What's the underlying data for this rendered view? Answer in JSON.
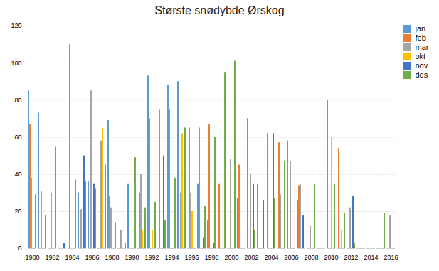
{
  "chart_data": {
    "type": "bar",
    "title": "Største snødybde Ørskog",
    "categories": [
      "1980",
      null,
      "1982",
      null,
      "1984",
      null,
      "1986",
      null,
      "1988",
      null,
      "1990",
      null,
      "1992",
      null,
      "1994",
      null,
      "1996",
      null,
      "1998",
      null,
      "2000",
      null,
      "2002",
      null,
      "2004",
      null,
      "2006",
      null,
      "2008",
      null,
      "2010",
      null,
      "2012",
      null,
      "2014",
      null,
      "2016"
    ],
    "series": [
      {
        "name": "jan",
        "color": "#5b9bd5",
        "values": [
          85,
          73,
          0,
          0,
          0,
          30,
          36,
          0,
          69,
          0,
          35,
          0,
          93,
          0,
          88,
          90,
          0,
          35,
          15,
          0,
          0,
          27,
          70,
          35,
          62,
          0,
          58,
          26,
          0,
          0,
          80,
          0,
          0,
          0,
          0,
          0,
          0
        ]
      },
      {
        "name": "feb",
        "color": "#ed7d31",
        "values": [
          67,
          0,
          0,
          0,
          110,
          0,
          0,
          0,
          28,
          0,
          0,
          30,
          70,
          75,
          75,
          0,
          65,
          65,
          67,
          35,
          0,
          45,
          0,
          0,
          0,
          57,
          0,
          34,
          0,
          0,
          0,
          54,
          0,
          0,
          0,
          0,
          0
        ]
      },
      {
        "name": "mar",
        "color": "#a5a5a5",
        "values": [
          38,
          31,
          30,
          0,
          0,
          21,
          85,
          58,
          22,
          10,
          0,
          40,
          0,
          0,
          0,
          30,
          30,
          0,
          0,
          0,
          48,
          0,
          40,
          0,
          0,
          29,
          47,
          35,
          12,
          0,
          0,
          0,
          22,
          0,
          0,
          0,
          18
        ]
      },
      {
        "name": "okt",
        "color": "#ffc000",
        "values": [
          0,
          0,
          0,
          0,
          0,
          0,
          0,
          65,
          0,
          0,
          0,
          10,
          10,
          0,
          0,
          62,
          20,
          0,
          0,
          0,
          0,
          0,
          0,
          0,
          0,
          0,
          0,
          0,
          0,
          0,
          60,
          10,
          0,
          0,
          0,
          0,
          0
        ]
      },
      {
        "name": "nov",
        "color": "#4472c4",
        "values": [
          0,
          0,
          0,
          3,
          0,
          50,
          35,
          0,
          0,
          0,
          0,
          0,
          0,
          50,
          0,
          0,
          0,
          6,
          3,
          0,
          0,
          0,
          35,
          26,
          62,
          0,
          0,
          18,
          0,
          0,
          0,
          0,
          28,
          0,
          0,
          0,
          0
        ]
      },
      {
        "name": "des",
        "color": "#70ad47",
        "values": [
          29,
          18,
          55,
          0,
          37,
          36,
          32,
          45,
          14,
          3,
          49,
          22,
          25,
          15,
          38,
          65,
          0,
          23,
          60,
          95,
          101,
          0,
          10,
          0,
          27,
          47,
          0,
          0,
          35,
          0,
          35,
          19,
          3,
          0,
          0,
          19,
          0
        ]
      }
    ],
    "ylim": [
      0,
      120
    ],
    "yticks": [
      0,
      20,
      40,
      60,
      80,
      100,
      120
    ],
    "grid": true,
    "legend": "upper right"
  }
}
